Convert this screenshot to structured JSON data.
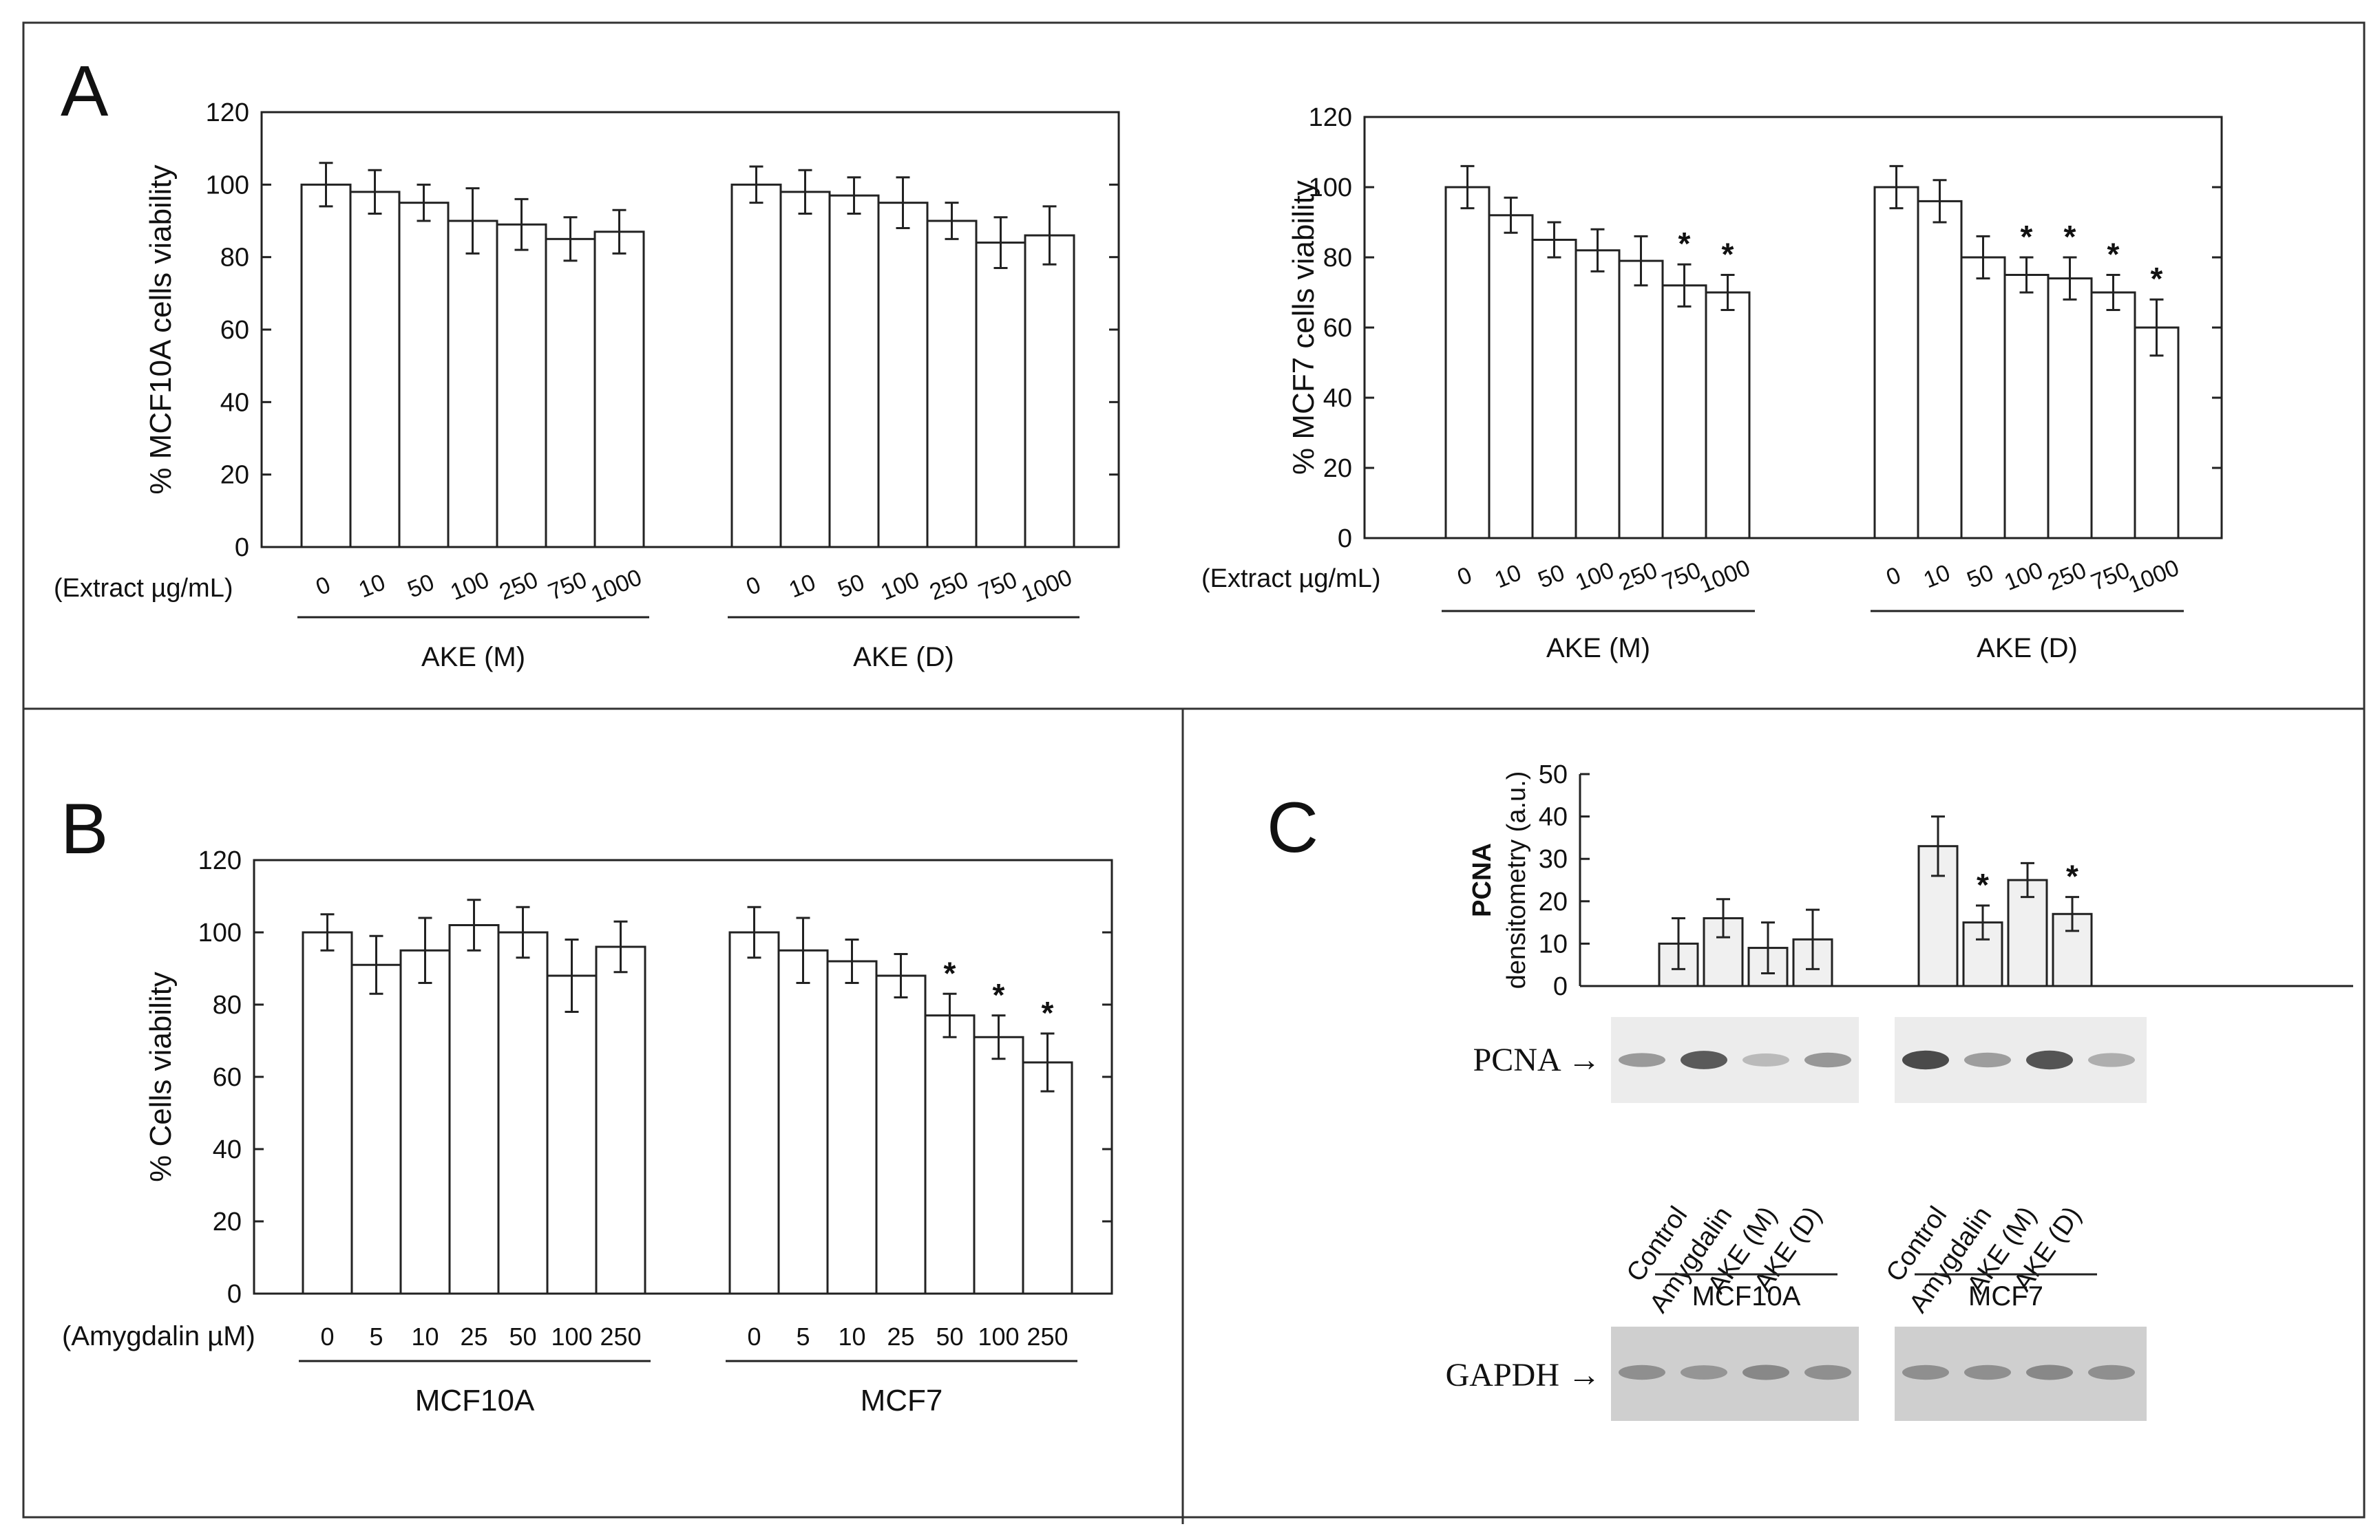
{
  "panels": {
    "A": {
      "letter": "A"
    },
    "B": {
      "letter": "B"
    },
    "C": {
      "letter": "C"
    }
  },
  "chart_data": [
    {
      "id": "A1",
      "type": "bar",
      "ylabel": "% MCF10A cells viability",
      "ylim": [
        0,
        120
      ],
      "yticks": [
        "0",
        "20",
        "40",
        "60",
        "80",
        "100",
        "120"
      ],
      "xprefix": "(Extract µg/mL)",
      "groups": [
        {
          "name": "AKE (M)",
          "categories": [
            "0",
            "10",
            "50",
            "100",
            "250",
            "750",
            "1000"
          ],
          "values": [
            100,
            98,
            95,
            90,
            89,
            85,
            87
          ],
          "errors": [
            6,
            6,
            5,
            9,
            7,
            6,
            6
          ],
          "sig": [
            "",
            "",
            "",
            "",
            "",
            "",
            ""
          ]
        },
        {
          "name": "AKE (D)",
          "categories": [
            "0",
            "10",
            "50",
            "100",
            "250",
            "750",
            "1000"
          ],
          "values": [
            100,
            98,
            97,
            95,
            90,
            84,
            86
          ],
          "errors": [
            5,
            6,
            5,
            7,
            5,
            7,
            8
          ],
          "sig": [
            "",
            "",
            "",
            "",
            "",
            "",
            ""
          ]
        }
      ]
    },
    {
      "id": "A2",
      "type": "bar",
      "ylabel": "% MCF7 cells viability",
      "ylim": [
        0,
        120
      ],
      "yticks": [
        "0",
        "20",
        "40",
        "60",
        "80",
        "100",
        "120"
      ],
      "xprefix": "(Extract µg/mL)",
      "groups": [
        {
          "name": "AKE (M)",
          "categories": [
            "0",
            "10",
            "50",
            "100",
            "250",
            "750",
            "1000"
          ],
          "values": [
            100,
            92,
            85,
            82,
            79,
            72,
            70
          ],
          "errors": [
            6,
            5,
            5,
            6,
            7,
            6,
            5
          ],
          "sig": [
            "",
            "",
            "",
            "",
            "",
            "*",
            "*"
          ]
        },
        {
          "name": "AKE (D)",
          "categories": [
            "0",
            "10",
            "50",
            "100",
            "250",
            "750",
            "1000"
          ],
          "values": [
            100,
            96,
            80,
            75,
            74,
            70,
            60
          ],
          "errors": [
            6,
            6,
            6,
            5,
            6,
            5,
            8
          ],
          "sig": [
            "",
            "",
            "",
            "*",
            "*",
            "*",
            "*"
          ]
        }
      ]
    },
    {
      "id": "B",
      "type": "bar",
      "ylabel": "% Cells viability",
      "ylim": [
        0,
        120
      ],
      "yticks": [
        "0",
        "20",
        "40",
        "60",
        "80",
        "100",
        "120"
      ],
      "xprefix": "(Amygdalin µM)",
      "groups": [
        {
          "name": "MCF10A",
          "categories": [
            "0",
            "5",
            "10",
            "25",
            "50",
            "100",
            "250"
          ],
          "values": [
            100,
            91,
            95,
            102,
            100,
            88,
            96
          ],
          "errors": [
            5,
            8,
            9,
            7,
            7,
            10,
            7
          ],
          "sig": [
            "",
            "",
            "",
            "",
            "",
            "",
            ""
          ]
        },
        {
          "name": "MCF7",
          "categories": [
            "0",
            "5",
            "10",
            "25",
            "50",
            "100",
            "250"
          ],
          "values": [
            100,
            95,
            92,
            88,
            77,
            71,
            64
          ],
          "errors": [
            7,
            9,
            6,
            6,
            6,
            6,
            8
          ],
          "sig": [
            "",
            "",
            "",
            "",
            "*",
            "*",
            "*"
          ]
        }
      ]
    },
    {
      "id": "C",
      "type": "bar",
      "ylabel_bold": "PCNA",
      "ylabel": "densitometry (a.u.)",
      "ylim": [
        0,
        50
      ],
      "yticks": [
        "0",
        "10",
        "20",
        "30",
        "40",
        "50"
      ],
      "groups": [
        {
          "name": "MCF10A",
          "categories": [
            "Control",
            "Amygdalin",
            "AKE (M)",
            "AKE (D)"
          ],
          "values": [
            10,
            16,
            9,
            11
          ],
          "errors": [
            6,
            4.5,
            6,
            7
          ],
          "sig": [
            "",
            "",
            "",
            ""
          ]
        },
        {
          "name": "MCF7",
          "categories": [
            "Control",
            "Amygdalin",
            "AKE (M)",
            "AKE (D)"
          ],
          "values": [
            33,
            15,
            25,
            17
          ],
          "errors": [
            7,
            4,
            4,
            4
          ],
          "sig": [
            "",
            "*",
            "",
            "*"
          ]
        }
      ],
      "blots": {
        "top_label": "PCNA →",
        "bottom_label": "GAPDH →"
      }
    }
  ]
}
